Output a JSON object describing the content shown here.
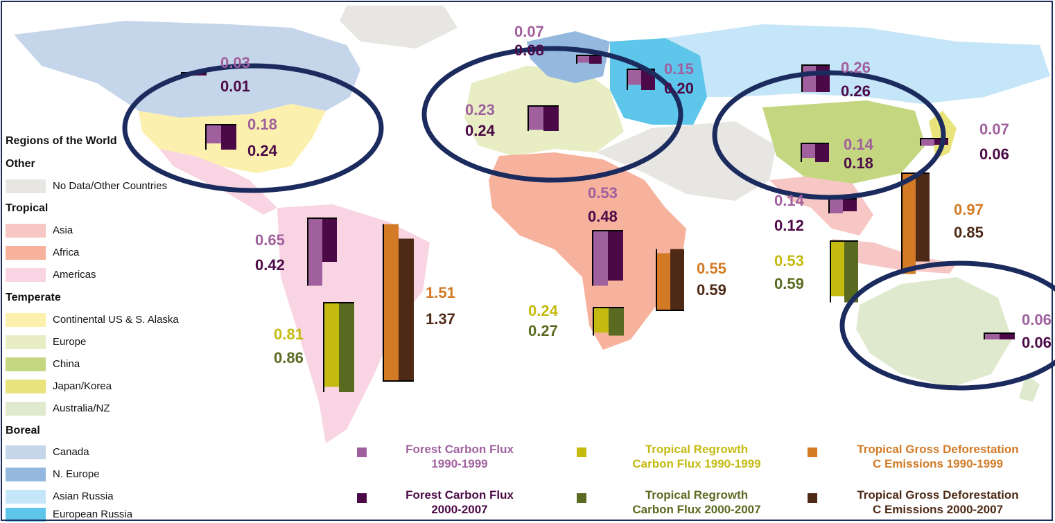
{
  "legend": {
    "title": "Regions of the World",
    "groups": [
      {
        "heading": "Other",
        "items": [
          {
            "label": "No Data/Other Countries",
            "color": "#e8e6e3"
          }
        ]
      },
      {
        "heading": "Tropical",
        "items": [
          {
            "label": "Asia",
            "color": "#f6c7c4"
          },
          {
            "label": "Africa",
            "color": "#f6b29c"
          },
          {
            "label": "Americas",
            "color": "#f9d4e3"
          }
        ]
      },
      {
        "heading": "Temperate",
        "items": [
          {
            "label": "Continental US & S. Alaska",
            "color": "#fbf0ad"
          },
          {
            "label": "Europe",
            "color": "#e8edc4"
          },
          {
            "label": "China",
            "color": "#c4d67f"
          },
          {
            "label": "Japan/Korea",
            "color": "#e9e37c"
          },
          {
            "label": "Australia/NZ",
            "color": "#dfe9cd"
          }
        ]
      },
      {
        "heading": "Boreal",
        "items": [
          {
            "label": "Canada",
            "color": "#c5d5ea"
          },
          {
            "label": "N. Europe",
            "color": "#94b8de"
          },
          {
            "label": "Asian Russia",
            "color": "#c5e5f8"
          },
          {
            "label": "European Russia",
            "color": "#5dc6ea"
          }
        ]
      }
    ]
  },
  "series_colors": {
    "forest_1990": "#a0609e",
    "forest_2000": "#4b0a47",
    "regrowth_1990": "#c4ba10",
    "regrowth_2000": "#5a6a21",
    "deforest_1990": "#d27a25",
    "deforest_2000": "#4e2a16"
  },
  "key": [
    {
      "lines": [
        "Forest Carbon Flux",
        "1990-1999"
      ],
      "color": "#a0609e"
    },
    {
      "lines": [
        "Tropical Regrowth",
        "Carbon Flux 1990-1999"
      ],
      "color": "#c4ba10"
    },
    {
      "lines": [
        "Tropical Gross Deforestation",
        "C Emissions 1990-1999"
      ],
      "color": "#d27a25"
    },
    {
      "lines": [
        "Forest Carbon Flux",
        "2000-2007"
      ],
      "color": "#4b0a47"
    },
    {
      "lines": [
        "Tropical Regrowth",
        "Carbon Flux 2000-2007"
      ],
      "color": "#5a6a21"
    },
    {
      "lines": [
        "Tropical Gross Deforestation",
        "C Emissions 2000-2007"
      ],
      "color": "#4e2a16"
    }
  ],
  "value_labels": {
    "canada": [
      "0.03",
      "0.01"
    ],
    "us": [
      "0.18",
      "0.24"
    ],
    "n_europe": [
      "0.07",
      "0.08"
    ],
    "europe": [
      "0.23",
      "0.24"
    ],
    "european_russia": [
      "0.15",
      "0.20"
    ],
    "asian_russia": [
      "0.26",
      "0.26"
    ],
    "china": [
      "0.14",
      "0.18"
    ],
    "japan_korea": [
      "0.07",
      "0.06"
    ],
    "trop_asia_forest": [
      "0.14",
      "0.12"
    ],
    "trop_asia_deforest": [
      "0.97",
      "0.85"
    ],
    "trop_asia_regrowth": [
      "0.53",
      "0.59"
    ],
    "africa_forest": [
      "0.53",
      "0.48"
    ],
    "africa_deforest": [
      "0.55",
      "0.59"
    ],
    "africa_regrowth": [
      "0.24",
      "0.27"
    ],
    "americas_forest": [
      "0.65",
      "0.42"
    ],
    "americas_deforest": [
      "1.51",
      "1.37"
    ],
    "americas_regrowth": [
      "0.81",
      "0.86"
    ],
    "australia": [
      "0.06",
      "0.06"
    ]
  }
}
